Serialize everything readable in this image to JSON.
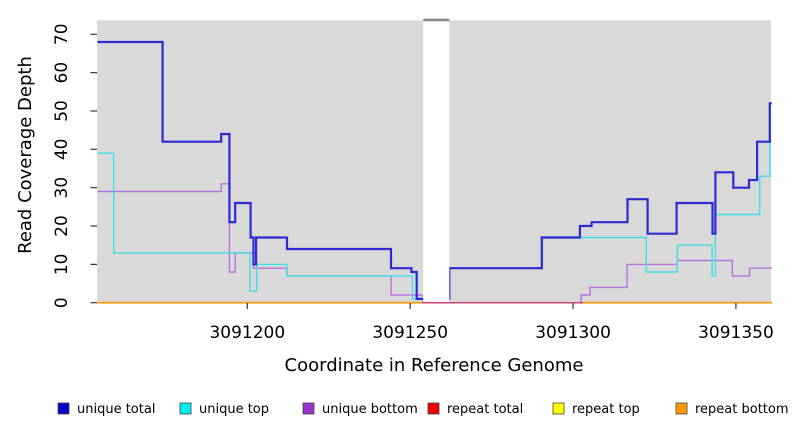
{
  "chart_data": {
    "type": "line",
    "subtype": "step-coverage-plot",
    "title": "",
    "xlabel": "Coordinate in Reference Genome",
    "ylabel": "Read Coverage Depth",
    "xlim": [
      3091154,
      3091361
    ],
    "ylim": [
      0,
      73.7
    ],
    "grid": false,
    "panel_bg": "#D9D9D9",
    "x_ticks": [
      3091200,
      3091250,
      3091300,
      3091350
    ],
    "y_ticks": [
      0,
      10,
      20,
      30,
      40,
      50,
      60,
      70
    ],
    "masked_region": {
      "x_start": 3091254,
      "x_end": 3091262,
      "fill": "#FFFFFF",
      "cap_color": "#8C8C8C"
    },
    "series": [
      {
        "name": "repeat top",
        "color": "#FFFF00",
        "width": 1.3,
        "points": [
          [
            3091154,
            0
          ]
        ],
        "x_end": 3091361
      },
      {
        "name": "repeat total",
        "color": "#EE1111",
        "width": 1.3,
        "points": [
          [
            3091154,
            0
          ]
        ],
        "x_end": 3091361
      },
      {
        "name": "unique bottom",
        "color": "#B572DC",
        "width": 1.4,
        "points": [
          [
            3091154,
            29
          ],
          [
            3091192,
            31
          ],
          [
            3091194.5,
            8
          ],
          [
            3091196.3,
            13
          ],
          [
            3091201.9,
            9
          ],
          [
            3091212.2,
            7
          ],
          [
            3091244.1,
            2
          ],
          [
            3091254,
            0
          ],
          [
            3091302.5,
            2
          ],
          [
            3091305.2,
            4
          ],
          [
            3091316.6,
            10
          ],
          [
            3091332,
            11
          ],
          [
            3091348.9,
            7
          ],
          [
            3091354.2,
            9
          ]
        ],
        "x_end": 3091361
      },
      {
        "name": "unique top",
        "color": "#3FE0E6",
        "width": 1.4,
        "points": [
          [
            3091154,
            39
          ],
          [
            3091159,
            13
          ],
          [
            3091200.8,
            3
          ],
          [
            3091202.9,
            10
          ],
          [
            3091212.2,
            7
          ],
          [
            3091250.7,
            1
          ],
          [
            3091262,
            9
          ],
          [
            3091290.4,
            17
          ],
          [
            3091322.5,
            8
          ],
          [
            3091332,
            15
          ],
          [
            3091342.7,
            7
          ],
          [
            3091343.7,
            23
          ],
          [
            3091357.3,
            33
          ],
          [
            3091360.4,
            42
          ]
        ],
        "x_end": 3091361
      },
      {
        "name": "repeat total visible segment",
        "color": "#CC4477",
        "width": 1.5,
        "points": [
          [
            3091253.6,
            0
          ]
        ],
        "x_end": 3091303
      },
      {
        "name": "repeat bottom left",
        "color": "#FF9E1A",
        "width": 1.8,
        "points": [
          [
            3091154,
            0
          ]
        ],
        "x_end": 3091253.6
      },
      {
        "name": "repeat bottom right",
        "color": "#FF9E1A",
        "width": 1.8,
        "points": [
          [
            3091303,
            0
          ]
        ],
        "x_end": 3091361
      },
      {
        "name": "unique total",
        "color": "#2B2BD0",
        "width": 2.2,
        "points": [
          [
            3091154,
            68
          ],
          [
            3091174,
            42
          ],
          [
            3091192,
            44
          ],
          [
            3091194.5,
            21
          ],
          [
            3091196.3,
            26
          ],
          [
            3091201,
            17
          ],
          [
            3091201.9,
            10
          ],
          [
            3091202.7,
            17
          ],
          [
            3091212.2,
            14
          ],
          [
            3091244.1,
            9
          ],
          [
            3091250.4,
            8
          ],
          [
            3091252,
            1
          ],
          [
            3091262,
            9
          ],
          [
            3091290.4,
            17
          ],
          [
            3091302.1,
            20
          ],
          [
            3091305.7,
            21
          ],
          [
            3091316.7,
            27
          ],
          [
            3091322.9,
            18
          ],
          [
            3091331.8,
            26
          ],
          [
            3091342.8,
            18
          ],
          [
            3091343.7,
            34
          ],
          [
            3091349.2,
            30
          ],
          [
            3091354,
            32
          ],
          [
            3091356.5,
            42
          ],
          [
            3091360.4,
            52
          ]
        ],
        "x_end": 3091361
      }
    ]
  },
  "legend": {
    "items": [
      {
        "label": "unique total",
        "color": "#0000CC"
      },
      {
        "label": "unique top",
        "color": "#00EEEE"
      },
      {
        "label": "unique bottom",
        "color": "#9932CC"
      },
      {
        "label": "repeat total",
        "color": "#EE0000"
      },
      {
        "label": "repeat top",
        "color": "#FFFF00"
      },
      {
        "label": "repeat bottom",
        "color": "#FF9900"
      }
    ]
  }
}
